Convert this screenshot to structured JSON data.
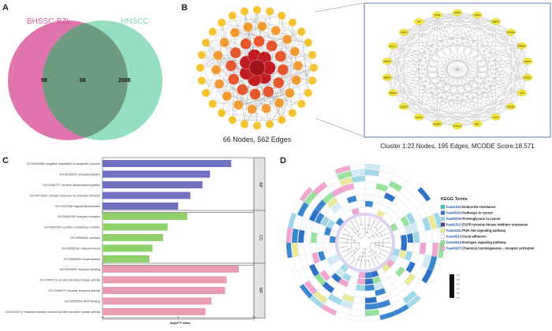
{
  "panel_letters": {
    "a": "A",
    "b": "B",
    "c": "C",
    "d": "D"
  },
  "venn": {
    "left_label": "BHSSC-BZL",
    "right_label": "HNSCC",
    "left_only": "98",
    "overlap": "68",
    "right_only": "2088",
    "left_color": "#d9559b",
    "right_color": "#7fd7b5",
    "overlap_color": "#6e9a7f"
  },
  "network": {
    "caption": "66 Nodes, 562 Edges",
    "cluster_caption": "Cluster 1:22 Nodes, 195 Edges, MCODE Score:18.571",
    "cluster_nodes": [
      "ESR1",
      "ESR2",
      "MMP9",
      "PTGS2",
      "PPARG",
      "EGFR",
      "NR3C1",
      "ALB",
      "IGF1R",
      "AKT1",
      "SRC",
      "PTGS1",
      "MAPK1",
      "HIF1A",
      "CASP3",
      "MMP2",
      "MMP3",
      "STAT3",
      "BCL2",
      "CDK2",
      "AR",
      "PGR"
    ]
  },
  "go_chart": {
    "xlabel": "-log10 P-value",
    "chart_data": {
      "type": "bar",
      "title": "",
      "xlabel": "-log10 P-value",
      "ylabel": "",
      "xlim": [
        0,
        10
      ],
      "xticks": [
        "0",
        "5",
        "10"
      ],
      "groups": [
        {
          "name": "BP",
          "color": "#7070c0",
          "items": [
            {
              "label": "GO:0043066~negative regulation of apoptotic process",
              "value": 8.5
            },
            {
              "label": "GO:0016310~phosphorylation",
              "value": 7.1
            },
            {
              "label": "GO:0046777~protein autophosphorylation",
              "value": 6.6
            },
            {
              "label": "GO:0071392~cellular response to estradiol stimulus",
              "value": 5.8
            },
            {
              "label": "GO:0007165~signal transduction",
              "value": 5.0
            }
          ]
        },
        {
          "name": "CC",
          "color": "#8fd06a",
          "items": [
            {
              "label": "GO:0043235~receptor complex",
              "value": 5.6
            },
            {
              "label": "GO:0032991~protein-containing complex",
              "value": 4.3
            },
            {
              "label": "GO:0005634~nucleus",
              "value": 4.0
            },
            {
              "label": "GO:0005739~mitochondrion",
              "value": 3.3
            },
            {
              "label": "GO:0005654~nucleoplasm",
              "value": 3.1
            }
          ]
        },
        {
          "name": "MF",
          "color": "#e99db2",
          "items": [
            {
              "label": "GO:0019899~enzyme binding",
              "value": 9.0
            },
            {
              "label": "GO:0004713~protein tyrosine kinase activity",
              "value": 8.2
            },
            {
              "label": "GO:0004879~nuclear receptor activity",
              "value": 8.1
            },
            {
              "label": "GO:0005524~ATP binding",
              "value": 7.2
            },
            {
              "label": "GO:0004714~transmembrane receptor protein tyrosine kinase activity",
              "value": 6.8
            }
          ]
        }
      ]
    }
  },
  "kegg": {
    "title": "KEGG Terms",
    "terms": [
      {
        "id": "hsa01522",
        "name": "Endocrine resistance",
        "color": "#36c3c3"
      },
      {
        "id": "hsa05200",
        "name": "Pathways in cancer",
        "color": "#2e72c8"
      },
      {
        "id": "hsa05205",
        "name": "Proteoglycans in cancer",
        "color": "#9fd8e8"
      },
      {
        "id": "hsa01521",
        "name": "EGFR tyrosine kinase inhibitor resistance",
        "color": "#5b3e8f"
      },
      {
        "id": "hsa04151",
        "name": "PI3K-Akt signaling pathway",
        "color": "#eaea9a"
      },
      {
        "id": "hsa04510",
        "name": "Focal adhesion",
        "color": "#ffffff"
      },
      {
        "id": "hsa04915",
        "name": "Estrogen signaling pathway",
        "color": "#96e29a"
      },
      {
        "id": "hsa05207",
        "name": "Chemical carcinogenesis - receptor activation",
        "color": "#f2a6cf"
      }
    ],
    "colorbar_ticks": [
      "1.0",
      "0.8",
      "0.6",
      "0.4",
      "0.2",
      "0.0"
    ]
  }
}
